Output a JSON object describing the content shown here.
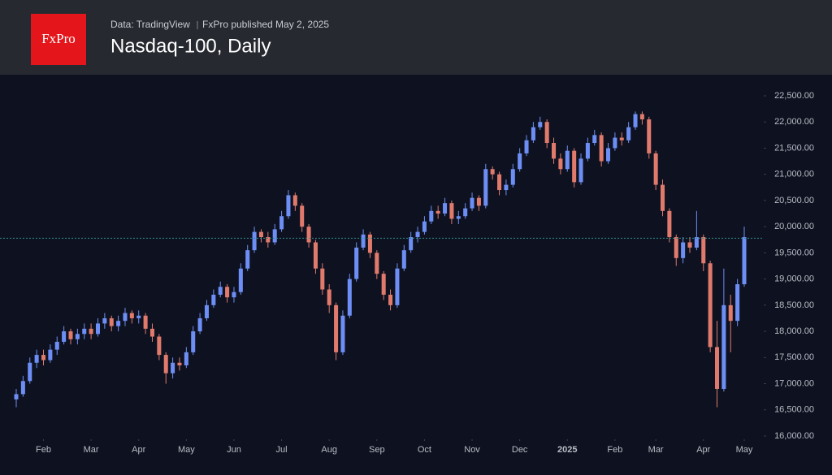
{
  "header": {
    "logo": "FxPro",
    "source": "Data: TradingView",
    "publisher": "FxPro published May 2, 2025"
  },
  "chart_data": {
    "type": "candlestick",
    "title": "Nasdaq-100, Daily",
    "up_color": "#6d8ef5",
    "down_color": "#e07a6c",
    "categories": [
      null,
      null,
      null,
      null,
      null,
      null,
      null,
      null,
      null,
      null,
      null,
      null,
      null,
      null,
      null,
      null,
      null,
      null,
      null,
      null,
      null,
      null,
      null,
      null,
      null,
      null,
      null,
      null,
      null,
      null,
      null,
      null,
      null,
      null,
      null,
      null,
      null,
      null,
      null,
      null,
      null,
      null,
      null,
      null,
      null,
      null,
      null,
      null,
      null,
      null,
      null,
      null,
      null,
      null,
      null,
      null,
      null,
      null,
      null,
      null,
      null,
      null,
      null,
      null,
      null,
      null,
      null,
      null,
      null,
      null,
      null,
      null,
      null,
      null,
      null,
      null,
      null,
      null,
      null,
      null,
      null,
      null,
      null,
      null,
      null,
      null,
      null,
      null,
      null,
      null,
      null,
      null,
      null,
      null,
      null,
      null,
      null,
      null,
      null,
      null,
      null,
      null,
      null,
      null,
      null,
      null,
      null,
      null
    ],
    "open": [
      16700,
      16800,
      17050,
      17400,
      17550,
      17450,
      17650,
      17800,
      18000,
      17850,
      17950,
      18050,
      17950,
      18150,
      18250,
      18100,
      18200,
      18350,
      18250,
      18300,
      18050,
      17900,
      17550,
      17200,
      17400,
      17350,
      17600,
      18000,
      18250,
      18500,
      18700,
      18850,
      18650,
      18750,
      19200,
      19550,
      19900,
      19800,
      19700,
      19950,
      20200,
      20600,
      20400,
      20000,
      19700,
      19200,
      18800,
      18500,
      17600,
      18300,
      19000,
      19600,
      19850,
      19500,
      19100,
      18700,
      18500,
      19200,
      19550,
      19800,
      19900,
      20100,
      20300,
      20250,
      20450,
      20150,
      20200,
      20350,
      20550,
      20400,
      21100,
      21000,
      20700,
      20800,
      21100,
      21400,
      21650,
      21900,
      22000,
      21600,
      21300,
      21100,
      21450,
      20850,
      21300,
      21600,
      21750,
      21250,
      21500,
      21700,
      21650,
      21900,
      22150,
      22050,
      21400,
      20800,
      20300,
      19800,
      19400,
      19700,
      19600,
      19800,
      19300,
      17700,
      16900,
      18500,
      18200,
      18900
    ],
    "high": [
      16900,
      17150,
      17500,
      17650,
      17650,
      17750,
      17900,
      18100,
      18050,
      18050,
      18150,
      18150,
      18250,
      18350,
      18300,
      18300,
      18450,
      18400,
      18400,
      18350,
      18150,
      17950,
      17600,
      17500,
      17500,
      17700,
      18100,
      18350,
      18600,
      18800,
      18950,
      18900,
      18850,
      19300,
      19650,
      20000,
      19950,
      19900,
      20050,
      20300,
      20700,
      20650,
      20450,
      20050,
      19750,
      19300,
      18900,
      18550,
      18400,
      19100,
      19700,
      19950,
      19900,
      19550,
      19150,
      18800,
      19300,
      19650,
      19900,
      20000,
      20200,
      20400,
      20400,
      20550,
      20500,
      20300,
      20450,
      20650,
      20600,
      21200,
      21150,
      21050,
      20900,
      21200,
      21500,
      21750,
      22000,
      22100,
      22050,
      21700,
      21400,
      21550,
      21500,
      21400,
      21700,
      21850,
      21800,
      21600,
      21800,
      21800,
      22000,
      22200,
      22200,
      22100,
      21450,
      20900,
      20350,
      19850,
      19800,
      19800,
      20300,
      19850,
      19350,
      18200,
      19200,
      18700,
      19000,
      20000
    ],
    "low": [
      16550,
      16750,
      17000,
      17300,
      17350,
      17400,
      17550,
      17750,
      17750,
      17750,
      17850,
      17850,
      17900,
      18050,
      18000,
      18000,
      18100,
      18150,
      18150,
      17950,
      17800,
      17450,
      17000,
      17100,
      17250,
      17300,
      17550,
      17950,
      18200,
      18450,
      18650,
      18550,
      18550,
      18700,
      19150,
      19500,
      19700,
      19600,
      19650,
      19900,
      20150,
      20300,
      19900,
      19600,
      19100,
      18700,
      18350,
      17450,
      17550,
      18250,
      18950,
      19550,
      19400,
      19000,
      18600,
      18400,
      18450,
      19150,
      19500,
      19700,
      19850,
      20050,
      20150,
      20200,
      20050,
      20050,
      20150,
      20300,
      20300,
      20350,
      20900,
      20600,
      20600,
      20750,
      21050,
      21350,
      21600,
      21850,
      21500,
      21200,
      21000,
      21050,
      20750,
      20800,
      21250,
      21550,
      21150,
      21200,
      21450,
      21550,
      21600,
      21850,
      21950,
      21300,
      20700,
      20200,
      19700,
      19250,
      19300,
      19500,
      19550,
      19150,
      17600,
      16550,
      16850,
      17600,
      18100,
      18850
    ],
    "close": [
      16800,
      17050,
      17400,
      17550,
      17450,
      17650,
      17800,
      18000,
      17850,
      17950,
      18050,
      17950,
      18150,
      18250,
      18100,
      18200,
      18350,
      18250,
      18300,
      18050,
      17900,
      17550,
      17200,
      17400,
      17350,
      17600,
      18000,
      18250,
      18500,
      18700,
      18850,
      18650,
      18750,
      19200,
      19550,
      19900,
      19800,
      19700,
      19950,
      20200,
      20600,
      20400,
      20000,
      19700,
      19200,
      18800,
      18500,
      17600,
      18300,
      19000,
      19600,
      19850,
      19500,
      19100,
      18700,
      18500,
      19200,
      19550,
      19800,
      19900,
      20100,
      20300,
      20250,
      20450,
      20150,
      20200,
      20350,
      20550,
      20400,
      21100,
      21000,
      20700,
      20800,
      21100,
      21400,
      21650,
      21900,
      22000,
      21600,
      21300,
      21100,
      21450,
      20850,
      21300,
      21600,
      21750,
      21250,
      21500,
      21700,
      21650,
      21900,
      22150,
      22050,
      21400,
      20800,
      20300,
      19800,
      19400,
      19700,
      19600,
      19800,
      19300,
      17700,
      16900,
      18500,
      18200,
      18900,
      19800
    ],
    "price_line": 19780,
    "xlim": [
      0,
      107
    ],
    "xticks": [
      {
        "value": 4,
        "label": "Feb"
      },
      {
        "value": 11,
        "label": "Mar"
      },
      {
        "value": 18,
        "label": "Apr"
      },
      {
        "value": 25,
        "label": "May"
      },
      {
        "value": 32,
        "label": "Jun"
      },
      {
        "value": 39,
        "label": "Jul"
      },
      {
        "value": 46,
        "label": "Aug"
      },
      {
        "value": 53,
        "label": "Sep"
      },
      {
        "value": 60,
        "label": "Oct"
      },
      {
        "value": 67,
        "label": "Nov"
      },
      {
        "value": 74,
        "label": "Dec"
      },
      {
        "value": 81,
        "label": "2025"
      },
      {
        "value": 88,
        "label": "Feb"
      },
      {
        "value": 94,
        "label": "Mar"
      },
      {
        "value": 101,
        "label": "Apr"
      },
      {
        "value": 107,
        "label": "May"
      }
    ],
    "ylim": [
      16000,
      22500
    ],
    "yticks": [
      {
        "value": 16000,
        "label": "16,000.00"
      },
      {
        "value": 16500,
        "label": "16,500.00"
      },
      {
        "value": 17000,
        "label": "17,000.00"
      },
      {
        "value": 17500,
        "label": "17,500.00"
      },
      {
        "value": 18000,
        "label": "18,000.00"
      },
      {
        "value": 18500,
        "label": "18,500.00"
      },
      {
        "value": 19000,
        "label": "19,000.00"
      },
      {
        "value": 19500,
        "label": "19,500.00"
      },
      {
        "value": 20000,
        "label": "20,000.00"
      },
      {
        "value": 20500,
        "label": "20,500.00"
      },
      {
        "value": 21000,
        "label": "21,000.00"
      },
      {
        "value": 21500,
        "label": "21,500.00"
      },
      {
        "value": 22000,
        "label": "22,000.00"
      },
      {
        "value": 22500,
        "label": "22,500.00"
      }
    ],
    "grid": false
  }
}
